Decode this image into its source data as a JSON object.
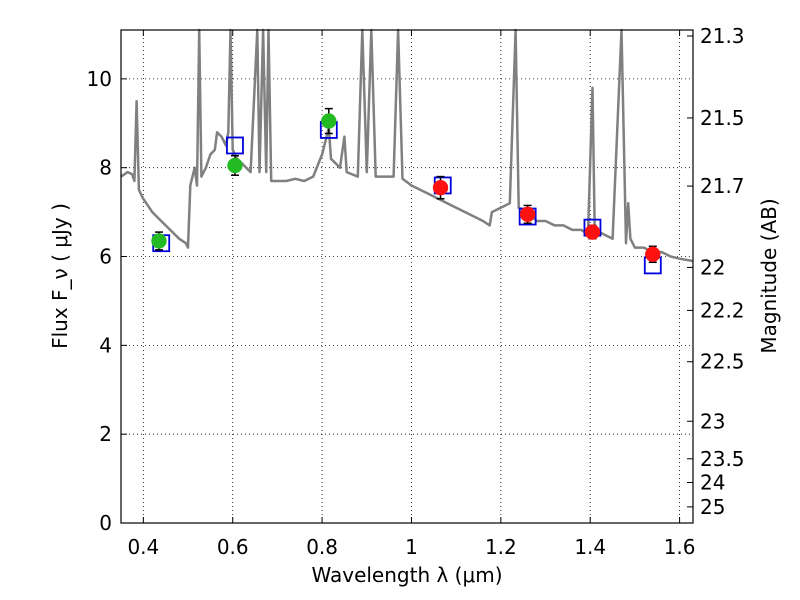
{
  "chart_data": {
    "type": "scatter",
    "title": "",
    "xlabel": "Wavelength  λ (μm)",
    "ylabel": "Flux  F_ν  ( μJy )",
    "y2label": "Magnitude (AB)",
    "xlim": [
      0.35,
      1.63
    ],
    "ylim": [
      0,
      11.1
    ],
    "grid": true,
    "x_ticks": [
      {
        "v": 0.4,
        "label": "0.4"
      },
      {
        "v": 0.6,
        "label": "0.6"
      },
      {
        "v": 0.8,
        "label": "0.8"
      },
      {
        "v": 1.0,
        "label": "1"
      },
      {
        "v": 1.2,
        "label": "1.2"
      },
      {
        "v": 1.4,
        "label": "1.4"
      },
      {
        "v": 1.6,
        "label": "1.6"
      }
    ],
    "y_ticks": [
      {
        "v": 0,
        "label": "0"
      },
      {
        "v": 2,
        "label": "2"
      },
      {
        "v": 4,
        "label": "4"
      },
      {
        "v": 6,
        "label": "6"
      },
      {
        "v": 8,
        "label": "8"
      },
      {
        "v": 10,
        "label": "10"
      }
    ],
    "mag_ticks": [
      {
        "mag": 21.3,
        "label": "21.3"
      },
      {
        "mag": 21.5,
        "label": "21.5"
      },
      {
        "mag": 21.7,
        "label": "21.7"
      },
      {
        "mag": 22.0,
        "label": "22"
      },
      {
        "mag": 22.2,
        "label": "22.2"
      },
      {
        "mag": 22.5,
        "label": "22.5"
      },
      {
        "mag": 23.0,
        "label": "23"
      },
      {
        "mag": 23.5,
        "label": "23.5"
      },
      {
        "mag": 24.0,
        "label": "24"
      },
      {
        "mag": 25.0,
        "label": "25"
      }
    ],
    "model_spectrum": {
      "color": "#808080",
      "points": [
        [
          0.35,
          7.8
        ],
        [
          0.365,
          7.9
        ],
        [
          0.375,
          7.85
        ],
        [
          0.38,
          7.7
        ],
        [
          0.385,
          9.5
        ],
        [
          0.39,
          7.5
        ],
        [
          0.4,
          7.3
        ],
        [
          0.42,
          7.0
        ],
        [
          0.44,
          6.8
        ],
        [
          0.46,
          6.6
        ],
        [
          0.48,
          6.4
        ],
        [
          0.495,
          6.3
        ],
        [
          0.5,
          6.2
        ],
        [
          0.505,
          7.6
        ],
        [
          0.515,
          8.0
        ],
        [
          0.52,
          7.6
        ],
        [
          0.525,
          11.2
        ],
        [
          0.53,
          7.8
        ],
        [
          0.54,
          8.0
        ],
        [
          0.55,
          8.3
        ],
        [
          0.56,
          8.4
        ],
        [
          0.565,
          8.8
        ],
        [
          0.575,
          8.7
        ],
        [
          0.585,
          8.5
        ],
        [
          0.59,
          8.8
        ],
        [
          0.595,
          11.2
        ],
        [
          0.6,
          8.4
        ],
        [
          0.61,
          8.2
        ],
        [
          0.62,
          8.1
        ],
        [
          0.64,
          7.9
        ],
        [
          0.655,
          11.2
        ],
        [
          0.66,
          7.9
        ],
        [
          0.668,
          11.2
        ],
        [
          0.675,
          7.9
        ],
        [
          0.68,
          11.2
        ],
        [
          0.686,
          7.7
        ],
        [
          0.7,
          7.7
        ],
        [
          0.72,
          7.7
        ],
        [
          0.74,
          7.75
        ],
        [
          0.76,
          7.7
        ],
        [
          0.78,
          7.8
        ],
        [
          0.8,
          8.3
        ],
        [
          0.81,
          8.7
        ],
        [
          0.815,
          8.9
        ],
        [
          0.82,
          8.2
        ],
        [
          0.83,
          8.1
        ],
        [
          0.84,
          8.0
        ],
        [
          0.85,
          8.7
        ],
        [
          0.855,
          7.9
        ],
        [
          0.88,
          7.8
        ],
        [
          0.89,
          11.2
        ],
        [
          0.9,
          7.9
        ],
        [
          0.91,
          11.2
        ],
        [
          0.92,
          7.8
        ],
        [
          0.94,
          7.8
        ],
        [
          0.96,
          7.8
        ],
        [
          0.97,
          11.2
        ],
        [
          0.98,
          7.75
        ],
        [
          1.0,
          7.6
        ],
        [
          1.02,
          7.5
        ],
        [
          1.04,
          7.4
        ],
        [
          1.06,
          7.3
        ],
        [
          1.08,
          7.2
        ],
        [
          1.1,
          7.1
        ],
        [
          1.12,
          7.0
        ],
        [
          1.14,
          6.9
        ],
        [
          1.16,
          6.8
        ],
        [
          1.175,
          6.7
        ],
        [
          1.18,
          7.0
        ],
        [
          1.2,
          7.1
        ],
        [
          1.22,
          7.2
        ],
        [
          1.233,
          11.2
        ],
        [
          1.24,
          7.1
        ],
        [
          1.26,
          7.0
        ],
        [
          1.28,
          6.8
        ],
        [
          1.3,
          6.8
        ],
        [
          1.32,
          6.7
        ],
        [
          1.34,
          6.7
        ],
        [
          1.36,
          6.6
        ],
        [
          1.38,
          6.6
        ],
        [
          1.395,
          6.5
        ],
        [
          1.405,
          9.8
        ],
        [
          1.41,
          6.6
        ],
        [
          1.43,
          6.5
        ],
        [
          1.45,
          6.4
        ],
        [
          1.47,
          11.2
        ],
        [
          1.48,
          6.3
        ],
        [
          1.485,
          7.2
        ],
        [
          1.49,
          6.4
        ],
        [
          1.5,
          6.2
        ],
        [
          1.52,
          6.2
        ],
        [
          1.54,
          6.1
        ],
        [
          1.56,
          6.1
        ],
        [
          1.58,
          6.0
        ],
        [
          1.6,
          5.95
        ],
        [
          1.63,
          5.9
        ]
      ]
    },
    "model_photometry": {
      "color": "#0000dd",
      "points": [
        {
          "x": 0.44,
          "y": 6.3
        },
        {
          "x": 0.605,
          "y": 8.5
        },
        {
          "x": 0.815,
          "y": 8.85
        },
        {
          "x": 1.07,
          "y": 7.6
        },
        {
          "x": 1.26,
          "y": 6.9
        },
        {
          "x": 1.405,
          "y": 6.65
        },
        {
          "x": 1.54,
          "y": 5.8
        }
      ]
    },
    "observed_optical": {
      "color": "#22bb22",
      "points": [
        {
          "x": 0.435,
          "y": 6.35,
          "err": 0.2
        },
        {
          "x": 0.605,
          "y": 8.05,
          "err": 0.22
        },
        {
          "x": 0.815,
          "y": 9.05,
          "err": 0.28
        }
      ]
    },
    "observed_nir": {
      "color": "#ff1111",
      "points": [
        {
          "x": 1.065,
          "y": 7.55,
          "err": 0.25
        },
        {
          "x": 1.26,
          "y": 6.95,
          "err": 0.2
        },
        {
          "x": 1.405,
          "y": 6.55,
          "err": 0.15
        },
        {
          "x": 1.54,
          "y": 6.05,
          "err": 0.18
        }
      ]
    }
  }
}
